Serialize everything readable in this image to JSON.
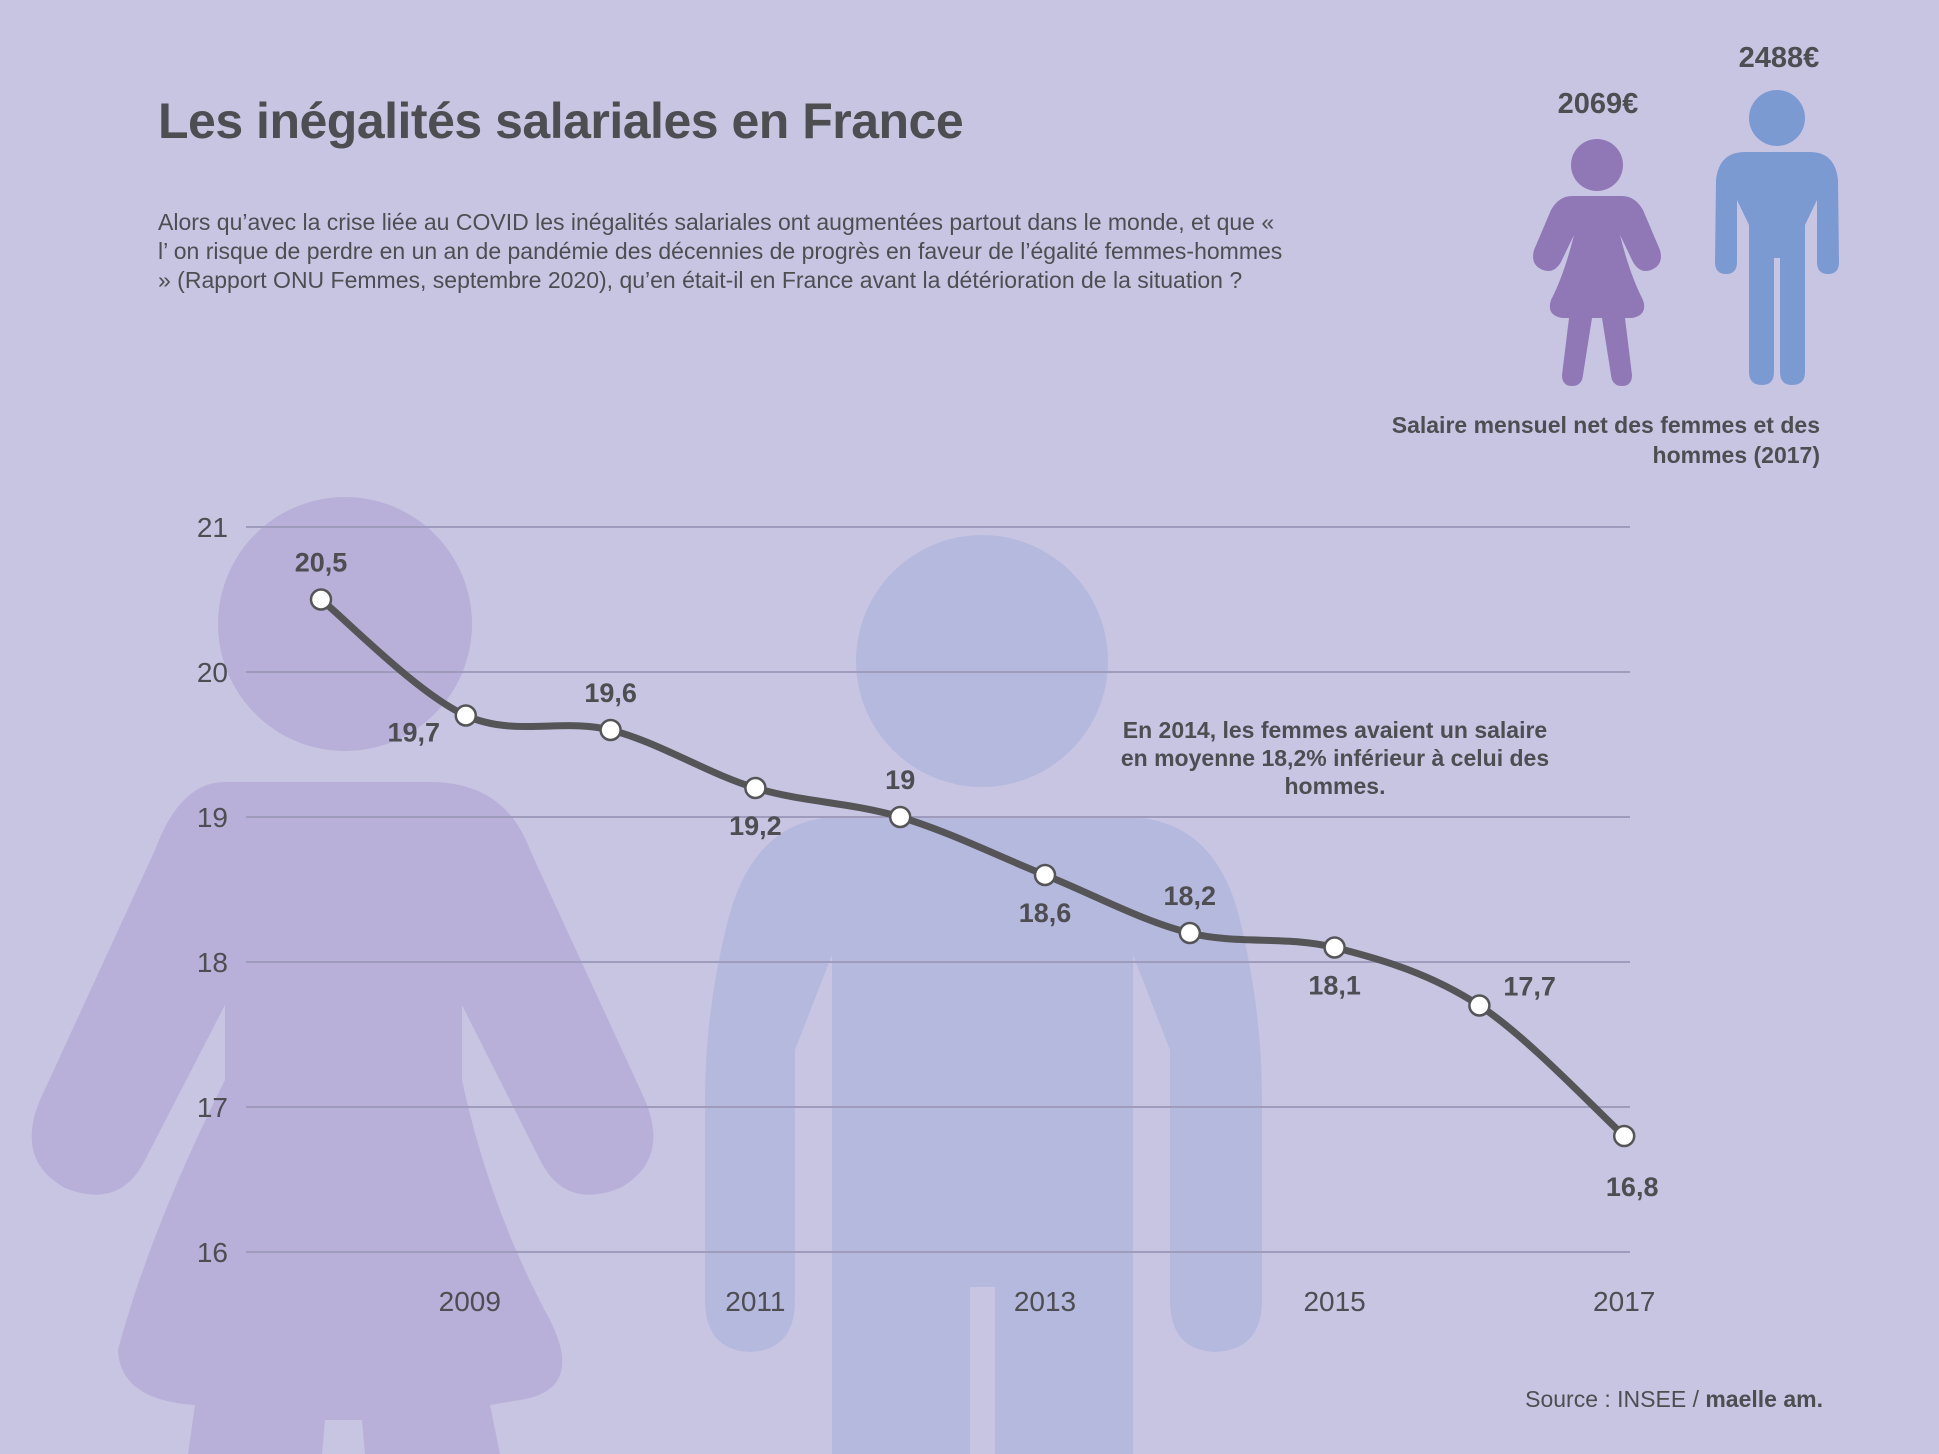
{
  "title": "Les inégalités salariales en France",
  "intro": "Alors qu’avec la crise liée au COVID les inégalités salariales ont augmentées partout dans le monde, et que « l’ on risque de perdre en un an de pandémie des décennies de progrès en faveur de l’égalité femmes-hommes » (Rapport ONU Femmes, septembre 2020), qu’en était-il en France avant la détérioration de la situation ?",
  "salary": {
    "women_value": "2069€",
    "men_value": "2488€",
    "caption": "Salaire mensuel net des femmes et des hommes (2017)",
    "women_icon": "woman-icon",
    "men_icon": "man-icon",
    "women_color": "#9078b6",
    "men_color": "#7c9ad2"
  },
  "annotation": "En 2014, les femmes avaient un salaire en moyenne 18,2% inférieur à celui des hommes.",
  "source": {
    "prefix": "Source : INSEE / ",
    "author": "maelle am."
  },
  "chart_data": {
    "type": "line",
    "x": [
      2008,
      2009,
      2010,
      2011,
      2012,
      2013,
      2014,
      2015,
      2016,
      2017
    ],
    "values": [
      20.5,
      19.7,
      19.6,
      19.2,
      19,
      18.6,
      18.2,
      18.1,
      17.7,
      16.8
    ],
    "data_labels": [
      "20,5",
      "19,7",
      "19,6",
      "19,2",
      "19",
      "18,6",
      "18,2",
      "18,1",
      "17,7",
      "16,8"
    ],
    "x_ticks": [
      2009,
      2011,
      2013,
      2015,
      2017
    ],
    "y_ticks": [
      16,
      17,
      18,
      19,
      20,
      21
    ],
    "ylim": [
      16,
      21
    ],
    "grid": true,
    "line_color": "#555558",
    "grid_color": "#9e9bbd"
  }
}
